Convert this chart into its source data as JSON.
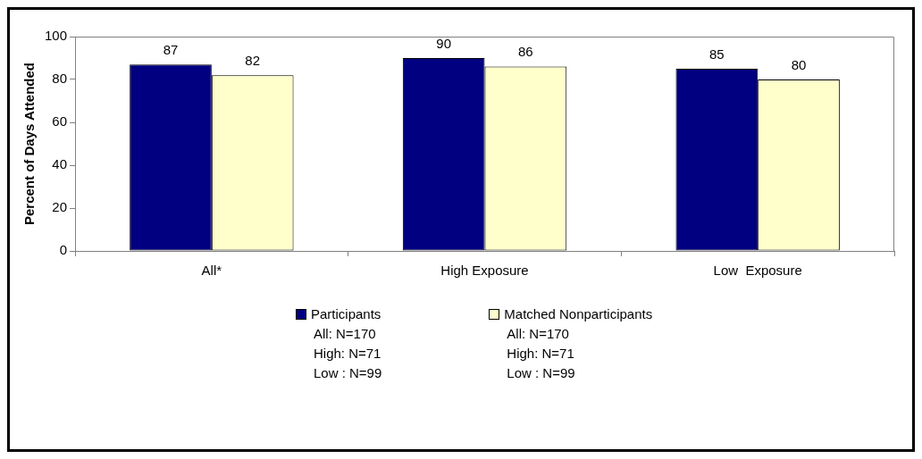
{
  "chart_data": {
    "type": "bar",
    "ylabel": "Percent of Days Attended",
    "categories": [
      "All*",
      "High Exposure",
      "Low  Exposure"
    ],
    "series": [
      {
        "name": "Participants",
        "color": "#000080",
        "values": [
          87,
          90,
          85
        ]
      },
      {
        "name": "Matched Nonparticipants",
        "color": "#ffffcc",
        "values": [
          82,
          86,
          80
        ]
      }
    ],
    "ylim": [
      0,
      100
    ],
    "yticks": [
      0,
      20,
      40,
      60,
      80,
      100
    ],
    "grid": false,
    "legend": "bottom",
    "data_labels": true,
    "annotations": [
      "All: N=170",
      "High: N=71",
      "Low : N=99",
      "All: N=170",
      "High: N=71",
      "Low : N=99"
    ]
  }
}
